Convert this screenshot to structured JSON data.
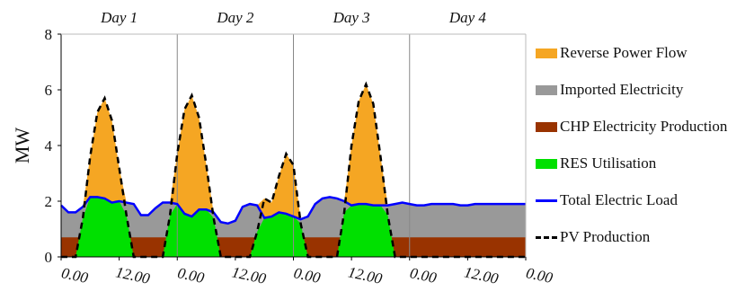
{
  "chart_data": {
    "type": "area",
    "ylabel": "MW",
    "ylim": [
      0,
      8
    ],
    "yticks": [
      "0",
      "2",
      "4",
      "6",
      "8"
    ],
    "day_labels": [
      "Day 1",
      "Day 2",
      "Day 3",
      "Day 4"
    ],
    "xtick_labels": [
      "0.00",
      "12.00",
      "0.00",
      "12.00",
      "0.00",
      "12.00",
      "0.00",
      "12.00",
      "0.00"
    ],
    "x_hours": [
      0,
      1.5,
      3,
      4.5,
      6,
      7.5,
      9,
      10.5,
      12,
      13.5,
      15,
      16.5,
      18,
      19.5,
      21,
      22.5,
      24,
      25.5,
      27,
      28.5,
      30,
      31.5,
      33,
      34.5,
      36,
      37.5,
      39,
      40.5,
      42,
      43.5,
      45,
      46.5,
      48,
      49.5,
      51,
      52.5,
      54,
      55.5,
      57,
      58.5,
      60,
      61.5,
      63,
      64.5,
      66,
      67.5,
      69,
      70.5,
      72,
      73.5,
      75,
      76.5,
      78,
      79.5,
      81,
      82.5,
      84,
      85.5,
      87,
      88.5,
      90,
      91.5,
      93,
      94.5,
      96
    ],
    "series": [
      {
        "name": "Reverse Power Flow",
        "style": "area",
        "color": "#f5a623"
      },
      {
        "name": "Imported Electricity",
        "style": "area",
        "color": "#999999"
      },
      {
        "name": "CHP Electricity Production",
        "style": "area",
        "color": "#993300",
        "values": [
          0.7,
          0.7,
          0.7,
          0.7,
          0.7,
          0.7,
          0.7,
          0.7,
          0.7,
          0.7,
          0.7,
          0.7,
          0.7,
          0.7,
          0.7,
          0.7,
          0.7,
          0.7,
          0.7,
          0.7,
          0.7,
          0.7,
          0.7,
          0.7,
          0.7,
          0.7,
          0.7,
          0.7,
          0.7,
          0.7,
          0.7,
          0.7,
          0.7,
          0.7,
          0.7,
          0.7,
          0.7,
          0.7,
          0.7,
          0.7,
          0.7,
          0.7,
          0.7,
          0.7,
          0.7,
          0.7,
          0.7,
          0.7,
          0.7,
          0.7,
          0.7,
          0.7,
          0.7,
          0.7,
          0.7,
          0.7,
          0.7,
          0.7,
          0.7,
          0.7,
          0.7,
          0.7,
          0.7,
          0.7,
          0.7
        ]
      },
      {
        "name": "RES Utilisation",
        "style": "area",
        "color": "#00e000"
      },
      {
        "name": "Total Electric Load",
        "style": "line",
        "color": "#0000ff",
        "values": [
          1.85,
          1.6,
          1.6,
          1.8,
          2.15,
          2.15,
          2.1,
          1.95,
          2.0,
          1.95,
          1.9,
          1.5,
          1.5,
          1.75,
          1.95,
          1.95,
          1.9,
          1.55,
          1.45,
          1.7,
          1.7,
          1.6,
          1.25,
          1.2,
          1.3,
          1.8,
          1.9,
          1.85,
          1.4,
          1.45,
          1.6,
          1.55,
          1.45,
          1.35,
          1.45,
          1.9,
          2.1,
          2.15,
          2.1,
          2.0,
          1.85,
          1.9,
          1.9,
          1.85,
          1.85,
          1.85,
          1.9,
          1.95,
          1.9,
          1.85,
          1.85,
          1.9,
          1.9,
          1.9,
          1.9,
          1.85,
          1.85,
          1.9,
          1.9,
          1.9,
          1.9,
          1.9,
          1.9,
          1.9,
          1.9
        ]
      },
      {
        "name": "PV Production",
        "style": "dashed",
        "color": "#000000",
        "values": [
          0,
          0,
          0,
          1.4,
          3.6,
          5.2,
          5.7,
          4.9,
          3.2,
          1.5,
          0,
          0,
          0,
          0,
          0,
          1.5,
          3.7,
          5.3,
          5.8,
          5.0,
          3.3,
          1.4,
          0,
          0,
          0,
          0,
          0,
          0.9,
          2.1,
          1.95,
          2.9,
          3.7,
          3.3,
          1.2,
          0,
          0,
          0,
          0,
          0,
          1.6,
          4.0,
          5.6,
          6.2,
          5.5,
          3.6,
          1.5,
          0,
          0,
          0,
          0,
          0,
          0,
          0,
          0,
          0,
          0,
          0,
          0,
          0,
          0,
          0,
          0,
          0,
          0,
          0
        ]
      }
    ],
    "grid": "vertical day separators",
    "legend_position": "right"
  }
}
